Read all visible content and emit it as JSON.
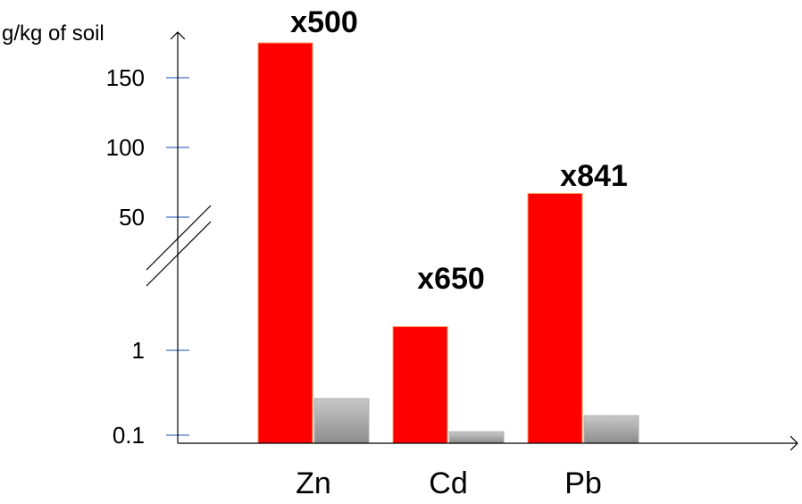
{
  "chart_data": {
    "type": "bar",
    "ylabel": "g/kg of soil",
    "y_scale": "broken",
    "y_ticks": [
      "0.1",
      "1",
      "50",
      "100",
      "150"
    ],
    "categories": [
      "Zn",
      "Cd",
      "Pb"
    ],
    "series": [
      {
        "values": [
          175,
          1.9,
          67
        ],
        "color": "#ff0000"
      },
      {
        "values": [
          0.27,
          0.11,
          0.17
        ],
        "color": "#a6a6a6"
      }
    ],
    "data_labels": [
      "x500",
      "x650",
      "x841"
    ],
    "axis_break": true,
    "grid": false,
    "legend": "none"
  }
}
